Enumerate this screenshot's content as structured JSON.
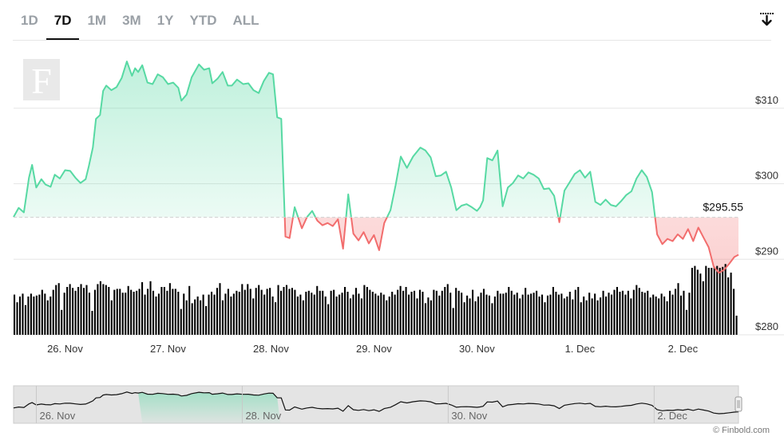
{
  "tabs": [
    "1D",
    "7D",
    "1M",
    "3M",
    "1Y",
    "YTD",
    "ALL"
  ],
  "active_tab": "7D",
  "credit": "© Finbold.com",
  "colors": {
    "up": "#57d9a3",
    "down": "#f26d6d",
    "volume": "#000000",
    "grid": "#e6e6e6"
  },
  "icons": {
    "logo": "finbold-f-logo",
    "download": "download-icon"
  },
  "chart_data": {
    "type": "line",
    "last_price_label": "$295.55",
    "reference_price": 295.55,
    "ylim": [
      280,
      318
    ],
    "y_ticks": [
      280,
      290,
      300,
      310
    ],
    "y_tick_labels": [
      "$280",
      "$290",
      "$300",
      "$310"
    ],
    "x_tick_labels": [
      "26. Nov",
      "27. Nov",
      "28. Nov",
      "29. Nov",
      "30. Nov",
      "1. Dec",
      "2. Dec"
    ],
    "x_tick_positions": [
      0.5,
      1.5,
      2.5,
      3.5,
      4.5,
      5.5,
      6.5
    ],
    "x_range": [
      0,
      7.04
    ],
    "grid": true,
    "price": {
      "x": [
        0.0,
        0.05,
        0.1,
        0.15,
        0.18,
        0.22,
        0.27,
        0.31,
        0.36,
        0.4,
        0.45,
        0.5,
        0.55,
        0.6,
        0.65,
        0.7,
        0.73,
        0.77,
        0.8,
        0.84,
        0.87,
        0.9,
        0.95,
        1.0,
        1.05,
        1.1,
        1.15,
        1.18,
        1.21,
        1.25,
        1.3,
        1.35,
        1.4,
        1.45,
        1.5,
        1.55,
        1.6,
        1.63,
        1.68,
        1.73,
        1.8,
        1.85,
        1.9,
        1.93,
        1.98,
        2.03,
        2.08,
        2.12,
        2.17,
        2.23,
        2.28,
        2.33,
        2.38,
        2.43,
        2.48,
        2.52,
        2.56,
        2.6,
        2.64,
        2.68,
        2.73,
        2.8,
        2.85,
        2.9,
        2.95,
        3.0,
        3.05,
        3.1,
        3.15,
        3.2,
        3.25,
        3.3,
        3.35,
        3.4,
        3.45,
        3.5,
        3.55,
        3.6,
        3.66,
        3.71,
        3.76,
        3.82,
        3.88,
        3.95,
        4.0,
        4.05,
        4.1,
        4.15,
        4.2,
        4.25,
        4.3,
        4.35,
        4.4,
        4.45,
        4.5,
        4.53,
        4.56,
        4.6,
        4.65,
        4.7,
        4.75,
        4.8,
        4.85,
        4.9,
        4.95,
        5.0,
        5.05,
        5.1,
        5.15,
        5.2,
        5.25,
        5.3,
        5.35,
        5.4,
        5.45,
        5.5,
        5.55,
        5.6,
        5.65,
        5.7,
        5.75,
        5.8,
        5.85,
        5.9,
        5.95,
        6.0,
        6.05,
        6.1,
        6.15,
        6.2,
        6.25,
        6.3,
        6.35,
        6.4,
        6.45,
        6.5,
        6.55,
        6.6,
        6.65,
        6.7,
        6.75,
        6.8,
        6.85,
        6.9,
        6.95,
        7.0,
        7.04
      ],
      "y": [
        295.6,
        296.8,
        296.2,
        300.8,
        302.5,
        299.5,
        300.6,
        299.9,
        299.6,
        301.2,
        300.7,
        301.8,
        301.7,
        300.8,
        300.1,
        300.6,
        302.3,
        304.8,
        308.6,
        309.1,
        312.3,
        313.0,
        312.4,
        312.8,
        314.0,
        316.2,
        314.3,
        315.3,
        314.8,
        315.7,
        313.4,
        313.2,
        314.5,
        314.1,
        313.2,
        313.4,
        312.7,
        311.0,
        311.8,
        314.1,
        315.8,
        315.1,
        315.3,
        313.3,
        313.9,
        314.8,
        313.0,
        313.0,
        313.8,
        313.2,
        313.3,
        312.4,
        312.0,
        313.6,
        314.7,
        314.5,
        308.8,
        308.6,
        293.0,
        292.8,
        296.9,
        294.1,
        295.6,
        296.4,
        295.1,
        294.5,
        294.8,
        294.4,
        295.3,
        291.4,
        298.6,
        293.4,
        292.5,
        293.6,
        292.1,
        293.2,
        291.2,
        294.8,
        296.5,
        299.8,
        303.6,
        302.1,
        303.6,
        304.8,
        304.4,
        303.5,
        301.0,
        301.1,
        301.6,
        299.5,
        296.5,
        297.1,
        297.3,
        296.9,
        296.4,
        296.9,
        297.8,
        303.4,
        303.1,
        304.4,
        297.0,
        299.5,
        300.1,
        301.1,
        300.7,
        301.5,
        301.2,
        300.7,
        299.3,
        299.4,
        298.4,
        294.9,
        299.1,
        300.2,
        301.3,
        301.8,
        300.8,
        301.6,
        297.6,
        297.2,
        297.9,
        297.2,
        297.0,
        297.7,
        298.5,
        299.0,
        300.7,
        301.8,
        300.9,
        298.9,
        293.3,
        292.0,
        292.7,
        292.4,
        293.3,
        292.7,
        294.0,
        292.4,
        294.2,
        292.9,
        291.6,
        289.0,
        288.2,
        288.6,
        289.4,
        290.3,
        290.6
      ]
    },
    "volume": [
      0.42,
      0.34,
      0.4,
      0.43,
      0.31,
      0.4,
      0.43,
      0.4,
      0.41,
      0.42,
      0.47,
      0.43,
      0.36,
      0.4,
      0.47,
      0.52,
      0.54,
      0.26,
      0.44,
      0.5,
      0.53,
      0.49,
      0.46,
      0.5,
      0.53,
      0.49,
      0.52,
      0.44,
      0.25,
      0.47,
      0.53,
      0.56,
      0.53,
      0.52,
      0.5,
      0.36,
      0.47,
      0.48,
      0.48,
      0.44,
      0.44,
      0.51,
      0.47,
      0.45,
      0.46,
      0.48,
      0.55,
      0.42,
      0.48,
      0.56,
      0.46,
      0.4,
      0.43,
      0.5,
      0.5,
      0.46,
      0.54,
      0.48,
      0.48,
      0.45,
      0.27,
      0.43,
      0.36,
      0.51,
      0.33,
      0.37,
      0.4,
      0.36,
      0.42,
      0.3,
      0.42,
      0.45,
      0.42,
      0.49,
      0.54,
      0.36,
      0.43,
      0.48,
      0.4,
      0.43,
      0.46,
      0.45,
      0.53,
      0.47,
      0.53,
      0.48,
      0.38,
      0.49,
      0.52,
      0.47,
      0.42,
      0.48,
      0.49,
      0.4,
      0.34,
      0.52,
      0.46,
      0.5,
      0.52,
      0.48,
      0.49,
      0.47,
      0.4,
      0.42,
      0.36,
      0.45,
      0.46,
      0.44,
      0.42,
      0.51,
      0.46,
      0.46,
      0.4,
      0.32,
      0.46,
      0.47,
      0.4,
      0.42,
      0.44,
      0.5,
      0.45,
      0.38,
      0.42,
      0.49,
      0.43,
      0.38,
      0.52,
      0.5,
      0.47,
      0.45,
      0.43,
      0.41,
      0.44,
      0.42,
      0.36,
      0.4,
      0.45,
      0.42,
      0.47,
      0.51,
      0.46,
      0.5,
      0.42,
      0.45,
      0.46,
      0.38,
      0.47,
      0.45,
      0.33,
      0.39,
      0.36,
      0.47,
      0.46,
      0.41,
      0.46,
      0.5,
      0.53,
      0.44,
      0.28,
      0.49,
      0.46,
      0.44,
      0.34,
      0.41,
      0.38,
      0.47,
      0.35,
      0.4,
      0.44,
      0.48,
      0.42,
      0.41,
      0.33,
      0.4,
      0.46,
      0.43,
      0.43,
      0.44,
      0.5,
      0.46,
      0.42,
      0.44,
      0.38,
      0.42,
      0.49,
      0.42,
      0.43,
      0.44,
      0.46,
      0.4,
      0.42,
      0.34,
      0.41,
      0.42,
      0.5,
      0.45,
      0.42,
      0.43,
      0.38,
      0.4,
      0.45,
      0.37,
      0.47,
      0.5,
      0.34,
      0.4,
      0.36,
      0.44,
      0.38,
      0.43,
      0.36,
      0.39,
      0.46,
      0.4,
      0.44,
      0.42,
      0.47,
      0.5,
      0.45,
      0.46,
      0.42,
      0.46,
      0.38,
      0.47,
      0.52,
      0.49,
      0.45,
      0.44,
      0.46,
      0.39,
      0.42,
      0.4,
      0.38,
      0.43,
      0.4,
      0.35,
      0.46,
      0.42,
      0.48,
      0.54,
      0.41,
      0.46,
      0.26,
      0.44,
      0.7,
      0.72,
      0.68,
      0.64,
      0.56,
      0.72,
      0.7,
      0.7,
      0.71,
      0.72,
      0.7,
      0.71,
      0.74,
      0.6,
      0.65,
      0.48,
      0.2
    ]
  }
}
